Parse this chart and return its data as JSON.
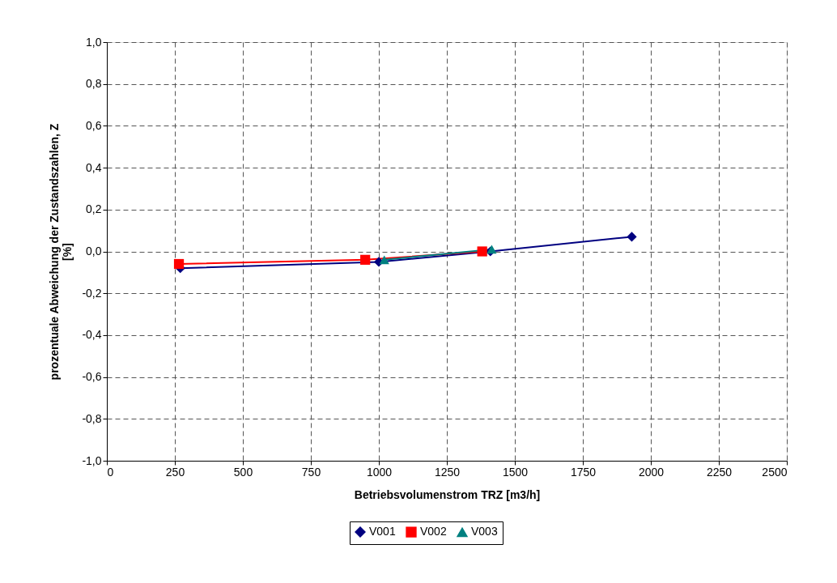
{
  "chart_data": {
    "type": "line",
    "xlabel": "Betriebsvolumenstrom TRZ    [m3/h]",
    "ylabel": [
      "prozentuale Abweichung der Zustandszahlen, Z",
      "[%]"
    ],
    "series": [
      {
        "name": "V001",
        "color": "#000080",
        "marker": "diamond",
        "x": [
          270,
          1000,
          1410,
          1930
        ],
        "values": [
          -0.08,
          -0.05,
          0.0,
          0.07
        ]
      },
      {
        "name": "V002",
        "color": "#ff0000",
        "marker": "square",
        "x": [
          265,
          950,
          1380
        ],
        "values": [
          -0.06,
          -0.04,
          0.0
        ]
      },
      {
        "name": "V003",
        "color": "#008080",
        "marker": "triangle",
        "x": [
          1020,
          1415
        ],
        "values": [
          -0.04,
          0.01
        ]
      }
    ],
    "xlim": [
      0,
      2500
    ],
    "xticks": [
      0,
      250,
      500,
      750,
      1000,
      1250,
      1500,
      1750,
      2000,
      2250,
      2500
    ],
    "ylim": [
      -1.0,
      1.0
    ],
    "yticks": [
      {
        "value": -1.0,
        "label": "-1,0"
      },
      {
        "value": -0.8,
        "label": "-0,8"
      },
      {
        "value": -0.6,
        "label": "-0,6"
      },
      {
        "value": -0.4,
        "label": "-0,4"
      },
      {
        "value": -0.2,
        "label": "-0,2"
      },
      {
        "value": 0.0,
        "label": "0,0"
      },
      {
        "value": 0.2,
        "label": "0,2"
      },
      {
        "value": 0.4,
        "label": "0,4"
      },
      {
        "value": 0.6,
        "label": "0,6"
      },
      {
        "value": 0.8,
        "label": "0,8"
      },
      {
        "value": 1.0,
        "label": "1,0"
      }
    ],
    "grid": true,
    "legend": "bottom",
    "line_style": "solid"
  }
}
